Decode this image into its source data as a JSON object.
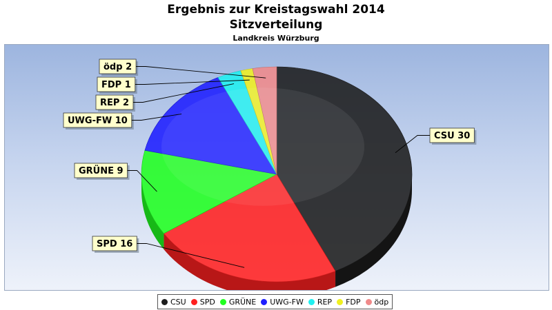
{
  "header": {
    "title": "Ergebnis zur Kreistagswahl 2014",
    "subtitle": "Sitzverteilung",
    "region": "Landkreis Würzburg"
  },
  "chart_data": {
    "type": "pie",
    "title": "Ergebnis zur Kreistagswahl 2014",
    "subtitle": "Sitzverteilung",
    "legend_position": "bottom",
    "slices": [
      {
        "name": "CSU",
        "value": 30,
        "label": "CSU 30",
        "color": "#1c1c1c"
      },
      {
        "name": "SPD",
        "value": 16,
        "label": "SPD 16",
        "color": "#ff2020"
      },
      {
        "name": "GRÜNE",
        "value": 9,
        "label": "GRÜNE 9",
        "color": "#20ff20"
      },
      {
        "name": "UWG-FW",
        "value": 10,
        "label": "UWG-FW 10",
        "color": "#1e1eff"
      },
      {
        "name": "REP",
        "value": 2,
        "label": "REP 2",
        "color": "#20f0f0"
      },
      {
        "name": "FDP",
        "value": 1,
        "label": "FDP 1",
        "color": "#f0f020"
      },
      {
        "name": "ödp",
        "value": 2,
        "label": "ödp 2",
        "color": "#f08a8a"
      }
    ]
  }
}
